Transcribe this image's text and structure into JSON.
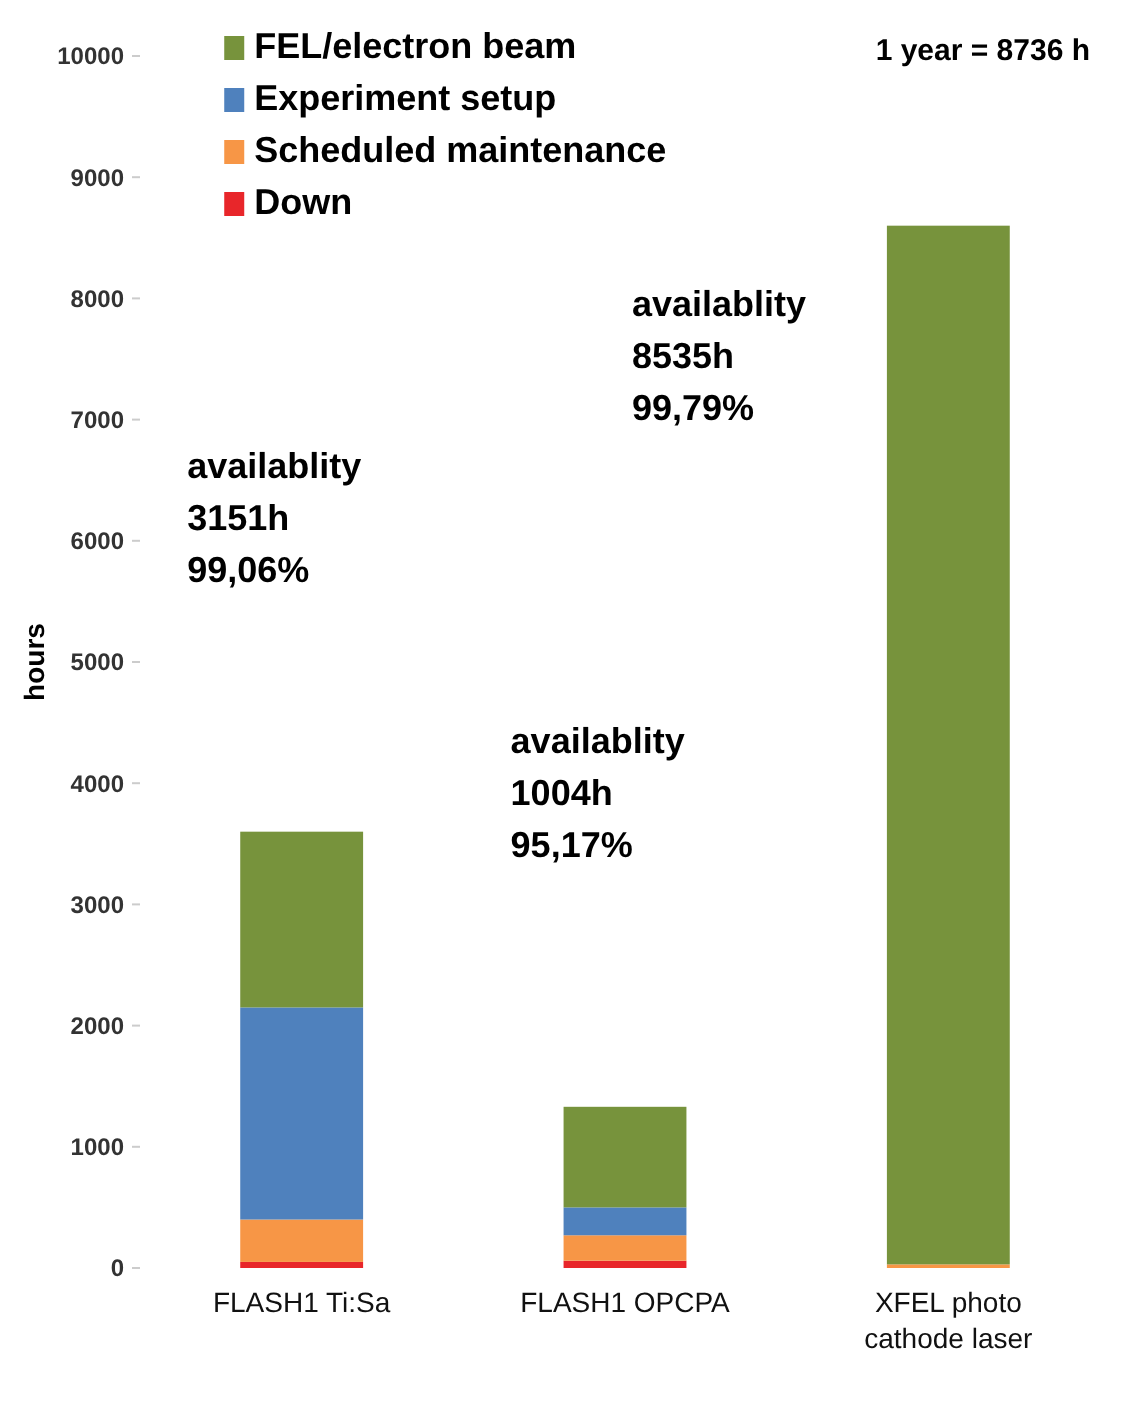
{
  "chart_data": {
    "type": "bar",
    "stacked": true,
    "ylabel": "hours",
    "categories": [
      "FLASH1 Ti:Sa",
      "FLASH1 OPCPA",
      "XFEL photo cathode laser"
    ],
    "series": [
      {
        "name": "Down",
        "color": "#e8262a",
        "values": [
          50,
          60,
          0
        ]
      },
      {
        "name": "Scheduled maintenance",
        "color": "#f79646",
        "values": [
          350,
          210,
          30
        ]
      },
      {
        "name": "Experiment setup",
        "color": "#4f81bd",
        "values": [
          1750,
          230,
          0
        ]
      },
      {
        "name": "FEL/electron beam",
        "color": "#77933c",
        "values": [
          1450,
          830,
          8570
        ]
      }
    ],
    "ylim": [
      0,
      10000
    ],
    "yticks": [
      0,
      1000,
      2000,
      3000,
      4000,
      5000,
      6000,
      7000,
      8000,
      9000,
      10000
    ],
    "grid": false,
    "legend": "top left",
    "annotations": [
      "availablity\n3151h\n99,06%",
      "availablity\n1004h\n95,17%",
      "availablity\n8535h\n99,79%",
      "1 year = 8736 h"
    ]
  }
}
